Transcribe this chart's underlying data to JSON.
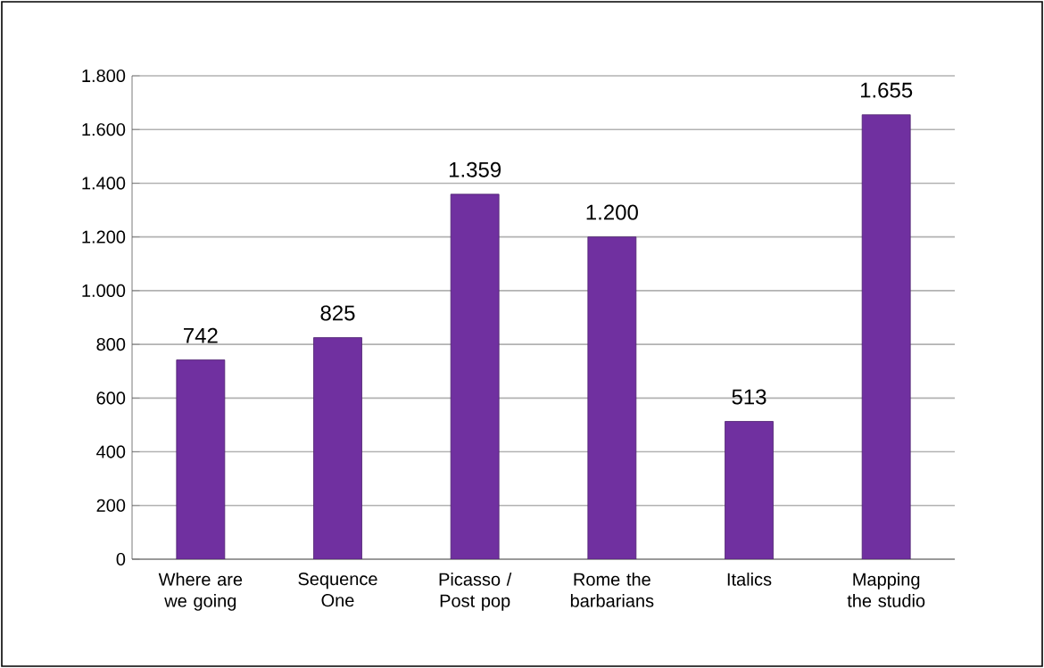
{
  "chart_data": {
    "type": "bar",
    "categories": [
      "Where are we going",
      "Sequence One",
      "Picasso / Post pop",
      "Rome the barbarians",
      "Italics",
      "Mapping the studio"
    ],
    "values": [
      742,
      825,
      1359,
      1200,
      513,
      1655
    ],
    "value_labels": [
      "742",
      "825",
      "1.359",
      "1.200",
      "513",
      "1.655"
    ],
    "color": "#7030a0",
    "ylim": [
      0,
      1800
    ],
    "yticks": [
      0,
      200,
      400,
      600,
      800,
      {
        "value": 1000,
        "label": "1.000"
      },
      {
        "value": 1200,
        "label": "1.200"
      },
      {
        "value": 1400,
        "label": "1.400"
      },
      {
        "value": 1600,
        "label": "1.600"
      },
      {
        "value": 1800,
        "label": "1.800"
      }
    ],
    "grid": "y"
  }
}
